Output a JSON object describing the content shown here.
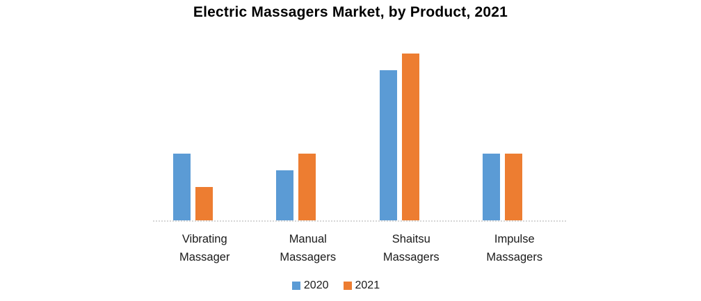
{
  "title": "Electric Massagers Market, by Product, 2021",
  "chart_data": {
    "type": "bar",
    "title": "Electric Massagers Market, by Product, 2021",
    "categories": [
      "Vibrating Massager",
      "Manual Massagers",
      "Shaitsu Massagers",
      "Impulse Massagers"
    ],
    "series": [
      {
        "name": "2020",
        "color": "#5B9BD5",
        "values": [
          4,
          3,
          9,
          4
        ]
      },
      {
        "name": "2021",
        "color": "#ED7D31",
        "values": [
          2,
          4,
          10,
          4
        ]
      }
    ],
    "xlabel": "",
    "ylabel": "",
    "ylim": [
      0,
      10.8
    ],
    "values_estimated": true,
    "grid": false,
    "y_axis_shown": false,
    "legend_position": "bottom",
    "axis_line_color": "#D6D6D6",
    "background_color": "#FFFFFF"
  },
  "legend": {
    "items": [
      {
        "label": "2020",
        "color": "#5B9BD5"
      },
      {
        "label": "2021",
        "color": "#ED7D31"
      }
    ]
  }
}
